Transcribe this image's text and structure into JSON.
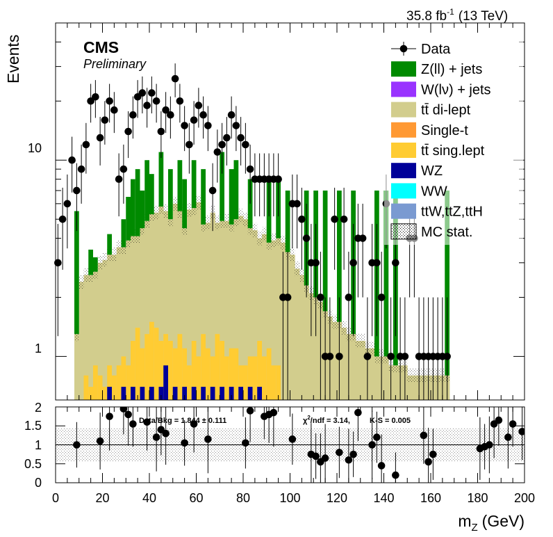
{
  "header": {
    "lumi": "35.8 fb",
    "lumi_exp": "-1",
    "energy": "(13 TeV)",
    "experiment": "CMS",
    "status": "Preliminary"
  },
  "ratio_text": {
    "databkg": "Data/Bkg = 1.844 ± 0.111",
    "chi2_sym": "χ",
    "chi2_exp": "2",
    "chi2_rest": "/ndf = 3.14,",
    "ks": "K-S = 0.005"
  },
  "colors": {
    "zjets": "#008a00",
    "wjets": "#9933ff",
    "ttdilep": "#d2cd8d",
    "singlet": "#ff9933",
    "ttsl": "#ffcc33",
    "wz": "#000099",
    "ww": "#00ffff",
    "ttx": "#7a9ad1"
  },
  "chart_data": [
    {
      "type": "bar",
      "subtype": "stacked-histogram",
      "ylabel": "Events",
      "xlim": [
        0,
        200
      ],
      "ylim": [
        0.6,
        50
      ],
      "log_y": true,
      "bin_width": 2,
      "y_ticks": [
        "1",
        "10"
      ],
      "legend_position": "top-right",
      "legend": [
        {
          "key": "data",
          "label": "Data",
          "style": "marker"
        },
        {
          "key": "zjets",
          "label": "Z(ll) + jets",
          "style": "fill"
        },
        {
          "key": "wjets",
          "label": "W(lν) + jets",
          "style": "fill"
        },
        {
          "key": "ttdilep",
          "label": "tt̄ di-lept",
          "style": "fill"
        },
        {
          "key": "singlet",
          "label": "Single-t",
          "style": "fill"
        },
        {
          "key": "ttsl",
          "label": "tt̄ sing.lept",
          "style": "fill"
        },
        {
          "key": "wz",
          "label": "WZ",
          "style": "fill"
        },
        {
          "key": "ww",
          "label": "WW",
          "style": "fill"
        },
        {
          "key": "ttx",
          "label": "ttW,ttZ,ttH",
          "style": "fill"
        },
        {
          "key": "mcstat",
          "label": "MC stat.",
          "style": "hatch"
        }
      ],
      "series": [
        {
          "key": "data",
          "values": [
            3,
            5,
            6,
            10,
            7,
            9,
            12,
            20,
            21,
            13,
            16,
            20,
            18,
            8,
            9,
            14,
            17,
            21,
            22,
            19,
            22,
            20,
            14,
            18,
            17,
            26,
            20,
            15,
            12,
            16,
            19,
            17,
            15,
            7,
            11,
            12,
            13,
            17,
            15,
            13,
            12,
            9,
            8,
            8,
            8,
            8,
            8,
            8,
            2,
            2,
            6,
            6,
            5,
            4,
            3,
            3,
            2,
            1,
            1,
            5,
            1,
            5,
            2,
            3,
            4,
            4,
            1,
            3,
            3,
            2,
            6,
            1,
            3,
            1,
            1,
            4,
            4,
            1,
            1,
            1,
            1,
            1,
            1,
            1
          ]
        },
        {
          "key": "ttdilep",
          "values": [
            0,
            0,
            0,
            0,
            1.3,
            2.4,
            2.6,
            2.6,
            2.7,
            3.0,
            3.1,
            3.3,
            3.3,
            3.6,
            3.6,
            3.9,
            4.1,
            4.1,
            4.5,
            4.9,
            5.3,
            5.4,
            5.8,
            5.5,
            5.0,
            6.0,
            5.5,
            4.5,
            5.6,
            5.7,
            6.1,
            4.7,
            4.8,
            5.4,
            4.8,
            4.9,
            4.9,
            4.7,
            5.0,
            5.2,
            5.0,
            4.5,
            4.4,
            4.0,
            4.2,
            3.8,
            3.9,
            4.0,
            3.8,
            3.4,
            3.3,
            2.8,
            2.6,
            2.3,
            2.1,
            2.0,
            1.9,
            1.7,
            1.6,
            1.5,
            1.5,
            1.4,
            1.3,
            1.3,
            1.2,
            1.2,
            1.1,
            1.1,
            1.0,
            1.0,
            1.0,
            0.9,
            0.9,
            0.9,
            0.9,
            0.8,
            0.8,
            0.8,
            0.8,
            0.8,
            0.8,
            0.8,
            0.8,
            0.8
          ]
        },
        {
          "key": "zjets",
          "values": [
            0,
            0,
            0,
            0,
            0,
            0,
            0,
            0,
            0,
            0,
            0,
            0,
            0,
            0,
            0,
            0,
            0,
            0,
            0,
            0,
            0,
            0,
            0,
            0,
            0,
            0,
            0,
            0,
            0,
            0,
            0,
            0,
            0,
            0,
            0,
            0,
            0,
            0,
            0,
            0,
            0,
            0,
            0,
            0,
            0,
            0,
            0,
            0,
            0,
            0,
            0,
            0,
            0,
            0,
            0,
            0,
            0,
            0,
            0,
            0,
            0,
            0,
            0,
            0,
            0,
            0,
            0,
            0,
            0,
            0,
            0,
            0,
            0,
            0,
            0,
            0,
            0,
            0,
            0,
            0,
            0,
            0,
            0,
            0
          ]
        },
        {
          "key": "ttsl",
          "values": [
            0,
            0,
            0,
            0,
            0,
            0,
            0,
            0,
            0,
            0,
            0,
            0,
            0,
            0,
            0,
            0,
            0,
            0,
            0,
            0,
            0,
            0,
            0,
            0,
            0,
            0,
            0,
            0,
            0,
            0,
            0,
            0,
            0,
            0,
            0,
            0,
            0,
            0,
            0,
            0,
            0,
            0,
            0,
            0,
            0,
            0,
            0,
            0,
            0,
            0,
            0,
            0,
            0,
            0,
            0,
            0,
            0,
            0,
            0,
            0,
            0,
            0,
            0,
            0,
            0,
            0,
            0,
            0,
            0,
            0,
            0,
            0,
            0,
            0,
            0,
            0,
            0,
            0,
            0,
            0,
            0,
            0,
            0,
            0
          ]
        }
      ]
    },
    {
      "type": "scatter",
      "subtype": "ratio",
      "xlabel": "m",
      "xlabel_sub": "Z",
      "xlabel_unit": "(GeV)",
      "xlim": [
        0,
        200
      ],
      "ylim": [
        0,
        2
      ],
      "y_ticks": [
        "0",
        "0.5",
        "1",
        "1.5",
        "2"
      ],
      "x_ticks": [
        "0",
        "20",
        "40",
        "60",
        "80",
        "100",
        "120",
        "140",
        "160",
        "180",
        "200"
      ],
      "reference_line": 1,
      "x": [
        9,
        19,
        23,
        29,
        31,
        33,
        39,
        43,
        45,
        47,
        55,
        59,
        65,
        81,
        83,
        89,
        91,
        93,
        101,
        109,
        111,
        113,
        115,
        121,
        125,
        127,
        129,
        135,
        137,
        139,
        145,
        157,
        159,
        161,
        181,
        183,
        185,
        187,
        189,
        193,
        195,
        199
      ],
      "values": [
        1.0,
        1.1,
        1.75,
        1.95,
        1.8,
        1.55,
        1.6,
        1.2,
        1.4,
        1.3,
        1.05,
        1.55,
        1.15,
        1.05,
        1.9,
        1.75,
        1.8,
        1.85,
        1.15,
        0.75,
        0.7,
        0.55,
        0.65,
        0.8,
        0.6,
        0.75,
        1.85,
        1.0,
        1.2,
        0.45,
        0.2,
        1.25,
        0.55,
        0.75,
        0.9,
        0.95,
        1.0,
        1.55,
        1.65,
        1.2,
        1.55,
        1.35
      ]
    }
  ]
}
